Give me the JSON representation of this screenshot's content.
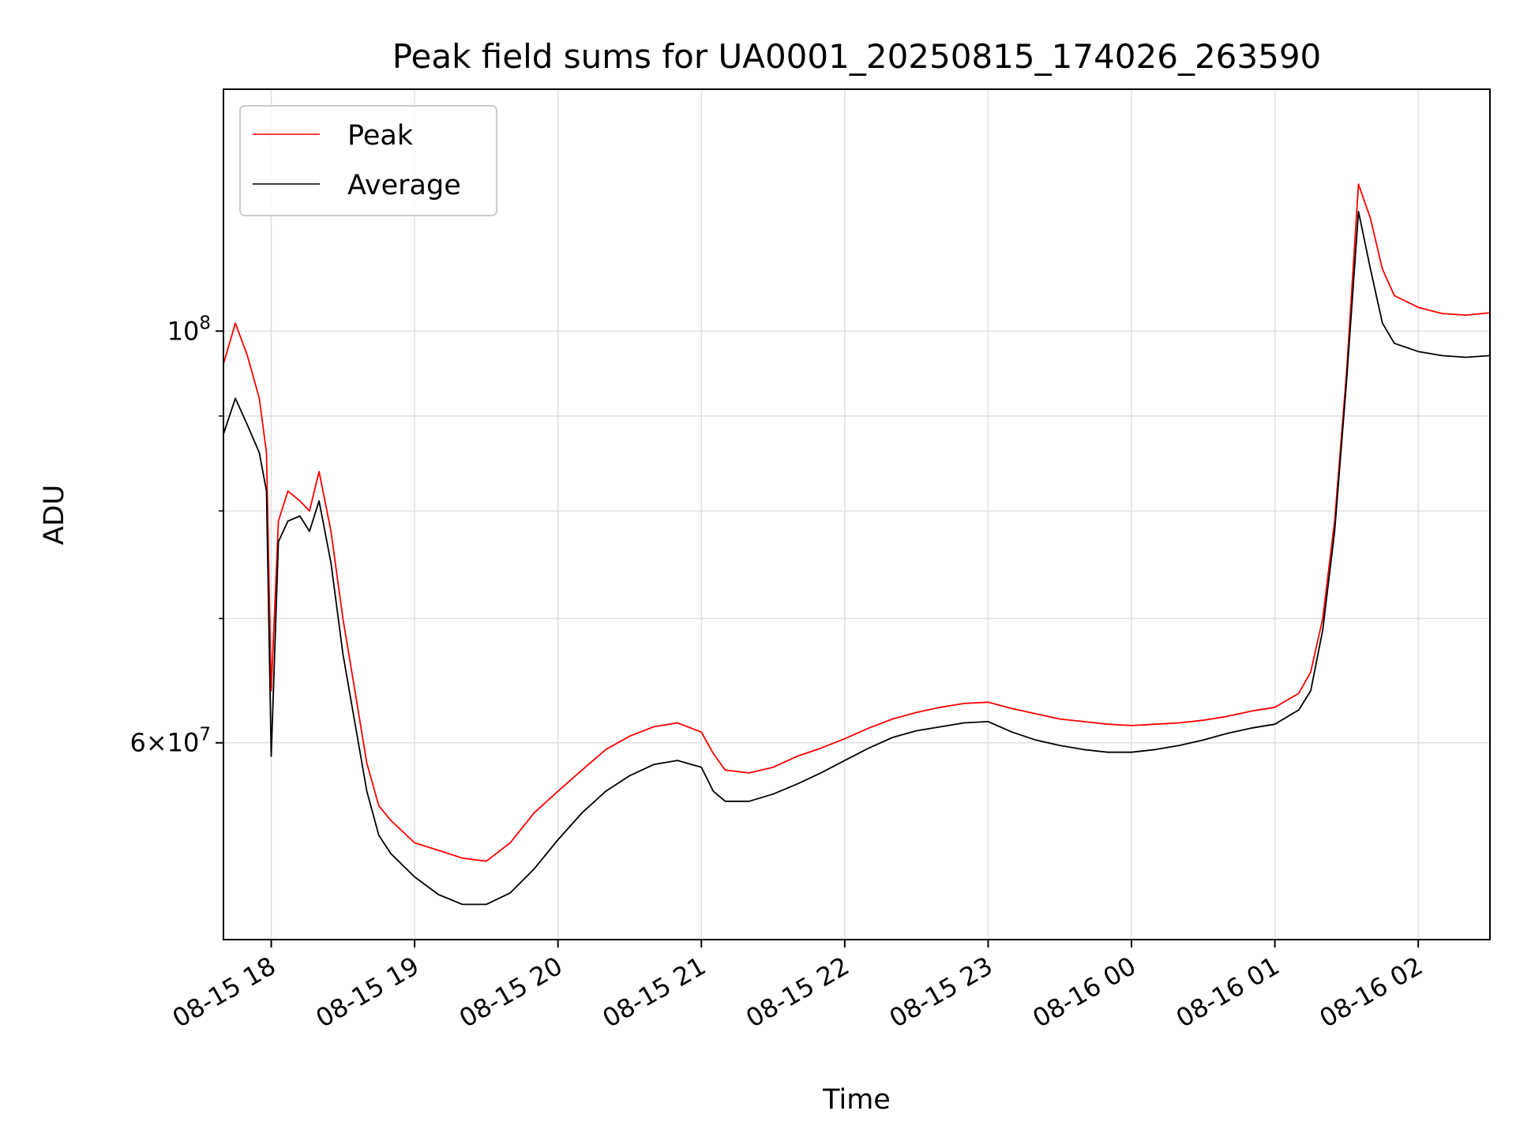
{
  "chart_data": {
    "type": "line",
    "title": "Peak field sums for UA0001_20250815_174026_263590",
    "xlabel": "Time",
    "ylabel": "ADU",
    "y_scale": "log",
    "ylim": [
      47000000,
      135000000
    ],
    "xlim": [
      "2025-08-15 17:40",
      "2025-08-16 02:30"
    ],
    "x_ticks": [
      {
        "t": "2025-08-15 18:00",
        "label": "08-15 18"
      },
      {
        "t": "2025-08-15 19:00",
        "label": "08-15 19"
      },
      {
        "t": "2025-08-15 20:00",
        "label": "08-15 20"
      },
      {
        "t": "2025-08-15 21:00",
        "label": "08-15 21"
      },
      {
        "t": "2025-08-15 22:00",
        "label": "08-15 22"
      },
      {
        "t": "2025-08-15 23:00",
        "label": "08-15 23"
      },
      {
        "t": "2025-08-16 00:00",
        "label": "08-16 00"
      },
      {
        "t": "2025-08-16 01:00",
        "label": "08-16 01"
      },
      {
        "t": "2025-08-16 02:00",
        "label": "08-16 02"
      }
    ],
    "y_ticks_major": [
      {
        "v": 60000000,
        "base": "6",
        "exp": "7"
      },
      {
        "v": 100000000,
        "base": "10",
        "exp": "8"
      }
    ],
    "y_ticks_minor": [
      70000000,
      80000000,
      90000000
    ],
    "grid": true,
    "legend_position": "top-left",
    "series": [
      {
        "name": "Peak",
        "color": "#ff0000",
        "points": [
          [
            "2025-08-15 17:40",
            96000000
          ],
          [
            "2025-08-15 17:45",
            101000000
          ],
          [
            "2025-08-15 17:50",
            97000000
          ],
          [
            "2025-08-15 17:55",
            92000000
          ],
          [
            "2025-08-15 17:58",
            86000000
          ],
          [
            "2025-08-15 18:00",
            64000000
          ],
          [
            "2025-08-15 18:03",
            79000000
          ],
          [
            "2025-08-15 18:07",
            82000000
          ],
          [
            "2025-08-15 18:12",
            81000000
          ],
          [
            "2025-08-15 18:16",
            80000000
          ],
          [
            "2025-08-15 18:20",
            84000000
          ],
          [
            "2025-08-15 18:25",
            78000000
          ],
          [
            "2025-08-15 18:30",
            70000000
          ],
          [
            "2025-08-15 18:35",
            64000000
          ],
          [
            "2025-08-15 18:40",
            58500000
          ],
          [
            "2025-08-15 18:45",
            55500000
          ],
          [
            "2025-08-15 18:50",
            54500000
          ],
          [
            "2025-08-15 19:00",
            53000000
          ],
          [
            "2025-08-15 19:10",
            52500000
          ],
          [
            "2025-08-15 19:20",
            52000000
          ],
          [
            "2025-08-15 19:30",
            51800000
          ],
          [
            "2025-08-15 19:40",
            53000000
          ],
          [
            "2025-08-15 19:50",
            55000000
          ],
          [
            "2025-08-15 20:00",
            56500000
          ],
          [
            "2025-08-15 20:10",
            58000000
          ],
          [
            "2025-08-15 20:20",
            59500000
          ],
          [
            "2025-08-15 20:30",
            60500000
          ],
          [
            "2025-08-15 20:40",
            61200000
          ],
          [
            "2025-08-15 20:50",
            61500000
          ],
          [
            "2025-08-15 21:00",
            60800000
          ],
          [
            "2025-08-15 21:05",
            59200000
          ],
          [
            "2025-08-15 21:10",
            58000000
          ],
          [
            "2025-08-15 21:20",
            57800000
          ],
          [
            "2025-08-15 21:30",
            58200000
          ],
          [
            "2025-08-15 21:40",
            59000000
          ],
          [
            "2025-08-15 21:50",
            59600000
          ],
          [
            "2025-08-15 22:00",
            60300000
          ],
          [
            "2025-08-15 22:10",
            61100000
          ],
          [
            "2025-08-15 22:20",
            61800000
          ],
          [
            "2025-08-15 22:30",
            62300000
          ],
          [
            "2025-08-15 22:40",
            62700000
          ],
          [
            "2025-08-15 22:50",
            63000000
          ],
          [
            "2025-08-15 23:00",
            63100000
          ],
          [
            "2025-08-15 23:10",
            62600000
          ],
          [
            "2025-08-15 23:20",
            62200000
          ],
          [
            "2025-08-15 23:30",
            61800000
          ],
          [
            "2025-08-15 23:40",
            61600000
          ],
          [
            "2025-08-15 23:50",
            61400000
          ],
          [
            "2025-08-16 00:00",
            61300000
          ],
          [
            "2025-08-16 00:10",
            61400000
          ],
          [
            "2025-08-16 00:20",
            61500000
          ],
          [
            "2025-08-16 00:30",
            61700000
          ],
          [
            "2025-08-16 00:40",
            62000000
          ],
          [
            "2025-08-16 00:50",
            62400000
          ],
          [
            "2025-08-16 01:00",
            62700000
          ],
          [
            "2025-08-16 01:10",
            63800000
          ],
          [
            "2025-08-16 01:15",
            65500000
          ],
          [
            "2025-08-16 01:20",
            70000000
          ],
          [
            "2025-08-16 01:25",
            79000000
          ],
          [
            "2025-08-16 01:30",
            95000000
          ],
          [
            "2025-08-16 01:35",
            120000000
          ],
          [
            "2025-08-16 01:40",
            115000000
          ],
          [
            "2025-08-16 01:45",
            108000000
          ],
          [
            "2025-08-16 01:50",
            104500000
          ],
          [
            "2025-08-16 02:00",
            103000000
          ],
          [
            "2025-08-16 02:10",
            102200000
          ],
          [
            "2025-08-16 02:20",
            102000000
          ],
          [
            "2025-08-16 02:30",
            102300000
          ]
        ]
      },
      {
        "name": "Average",
        "color": "#000000",
        "points": [
          [
            "2025-08-15 17:40",
            88000000
          ],
          [
            "2025-08-15 17:45",
            92000000
          ],
          [
            "2025-08-15 17:50",
            89000000
          ],
          [
            "2025-08-15 17:55",
            86000000
          ],
          [
            "2025-08-15 17:58",
            82000000
          ],
          [
            "2025-08-15 18:00",
            59000000
          ],
          [
            "2025-08-15 18:03",
            77000000
          ],
          [
            "2025-08-15 18:07",
            79000000
          ],
          [
            "2025-08-15 18:12",
            79500000
          ],
          [
            "2025-08-15 18:16",
            78000000
          ],
          [
            "2025-08-15 18:20",
            81000000
          ],
          [
            "2025-08-15 18:25",
            75000000
          ],
          [
            "2025-08-15 18:30",
            67000000
          ],
          [
            "2025-08-15 18:35",
            61500000
          ],
          [
            "2025-08-15 18:40",
            56500000
          ],
          [
            "2025-08-15 18:45",
            53500000
          ],
          [
            "2025-08-15 18:50",
            52300000
          ],
          [
            "2025-08-15 19:00",
            50800000
          ],
          [
            "2025-08-15 19:10",
            49700000
          ],
          [
            "2025-08-15 19:20",
            49100000
          ],
          [
            "2025-08-15 19:30",
            49100000
          ],
          [
            "2025-08-15 19:40",
            49800000
          ],
          [
            "2025-08-15 19:50",
            51300000
          ],
          [
            "2025-08-15 20:00",
            53200000
          ],
          [
            "2025-08-15 20:10",
            55000000
          ],
          [
            "2025-08-15 20:20",
            56500000
          ],
          [
            "2025-08-15 20:30",
            57600000
          ],
          [
            "2025-08-15 20:40",
            58400000
          ],
          [
            "2025-08-15 20:50",
            58700000
          ],
          [
            "2025-08-15 21:00",
            58200000
          ],
          [
            "2025-08-15 21:05",
            56500000
          ],
          [
            "2025-08-15 21:10",
            55800000
          ],
          [
            "2025-08-15 21:20",
            55800000
          ],
          [
            "2025-08-15 21:30",
            56300000
          ],
          [
            "2025-08-15 21:40",
            57000000
          ],
          [
            "2025-08-15 21:50",
            57800000
          ],
          [
            "2025-08-15 22:00",
            58700000
          ],
          [
            "2025-08-15 22:10",
            59600000
          ],
          [
            "2025-08-15 22:20",
            60400000
          ],
          [
            "2025-08-15 22:30",
            60900000
          ],
          [
            "2025-08-15 22:40",
            61200000
          ],
          [
            "2025-08-15 22:50",
            61500000
          ],
          [
            "2025-08-15 23:00",
            61600000
          ],
          [
            "2025-08-15 23:10",
            60800000
          ],
          [
            "2025-08-15 23:20",
            60200000
          ],
          [
            "2025-08-15 23:30",
            59800000
          ],
          [
            "2025-08-15 23:40",
            59500000
          ],
          [
            "2025-08-15 23:50",
            59300000
          ],
          [
            "2025-08-16 00:00",
            59300000
          ],
          [
            "2025-08-16 00:10",
            59500000
          ],
          [
            "2025-08-16 00:20",
            59800000
          ],
          [
            "2025-08-16 00:30",
            60200000
          ],
          [
            "2025-08-16 00:40",
            60700000
          ],
          [
            "2025-08-16 00:50",
            61100000
          ],
          [
            "2025-08-16 01:00",
            61400000
          ],
          [
            "2025-08-16 01:10",
            62500000
          ],
          [
            "2025-08-16 01:15",
            64000000
          ],
          [
            "2025-08-16 01:20",
            69000000
          ],
          [
            "2025-08-16 01:25",
            78000000
          ],
          [
            "2025-08-16 01:30",
            94000000
          ],
          [
            "2025-08-16 01:35",
            116000000
          ],
          [
            "2025-08-16 01:40",
            108000000
          ],
          [
            "2025-08-16 01:45",
            101000000
          ],
          [
            "2025-08-16 01:50",
            98500000
          ],
          [
            "2025-08-16 02:00",
            97500000
          ],
          [
            "2025-08-16 02:10",
            97000000
          ],
          [
            "2025-08-16 02:20",
            96800000
          ],
          [
            "2025-08-16 02:30",
            97000000
          ]
        ]
      }
    ]
  }
}
